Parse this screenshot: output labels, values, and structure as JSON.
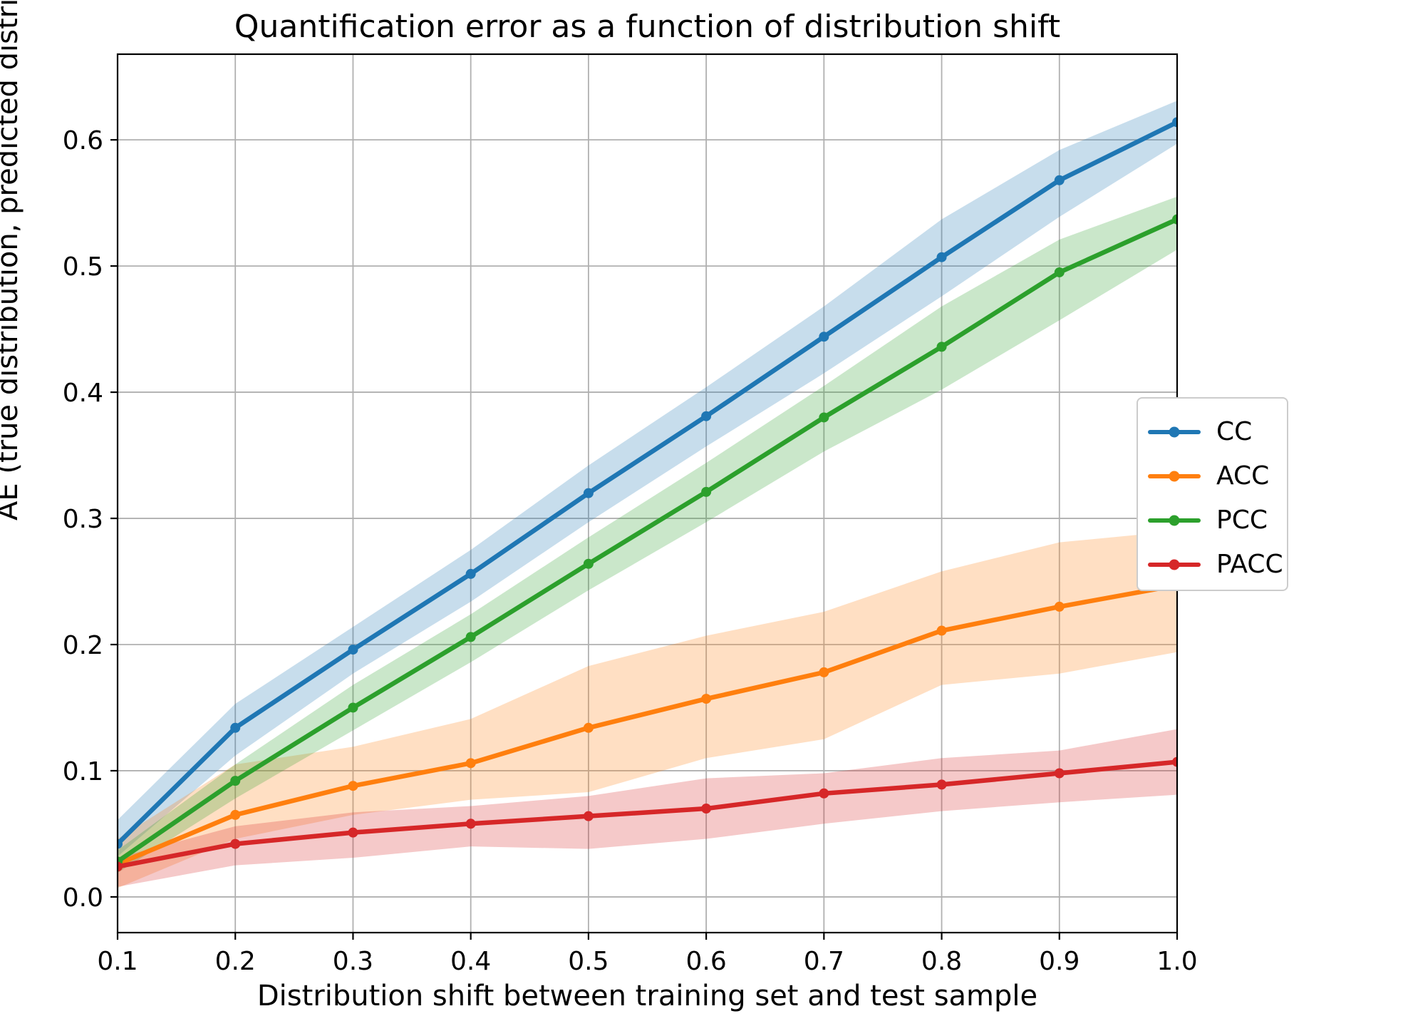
{
  "figure": {
    "title": "Quantification error as a function of distribution shift",
    "xlabel": "Distribution shift between training set and test sample",
    "ylabel": "AE (true distribution, predicted distribution)",
    "background_color": "#ffffff",
    "grid_color": "#b0b0b0",
    "spine_color": "#000000",
    "text_color": "#000000"
  },
  "chart_data": {
    "type": "line",
    "title": "Quantification error as a function of distribution shift",
    "xlabel": "Distribution shift between training set and test sample",
    "ylabel": "AE (true distribution, predicted distribution)",
    "grid": true,
    "legend_position": "right of axes, outside",
    "x": [
      0.1,
      0.2,
      0.3,
      0.4,
      0.5,
      0.6,
      0.7,
      0.8,
      0.9,
      1.0
    ],
    "x_tick_labels": [
      "0.1",
      "0.2",
      "0.3",
      "0.4",
      "0.5",
      "0.6",
      "0.7",
      "0.8",
      "0.9",
      "1.0"
    ],
    "y_ticks": [
      0.0,
      0.1,
      0.2,
      0.3,
      0.4,
      0.5,
      0.6
    ],
    "y_tick_labels": [
      "0.0",
      "0.1",
      "0.2",
      "0.3",
      "0.4",
      "0.5",
      "0.6"
    ],
    "xlim": [
      0.1,
      1.0
    ],
    "ylim": [
      -0.0283,
      0.6679
    ],
    "band_alpha": 0.25,
    "series": [
      {
        "name": "CC",
        "color": "#1f77b4",
        "values": [
          0.042,
          0.134,
          0.196,
          0.256,
          0.32,
          0.381,
          0.444,
          0.507,
          0.568,
          0.614
        ],
        "band_lower": [
          0.032,
          0.112,
          0.177,
          0.234,
          0.297,
          0.357,
          0.415,
          0.476,
          0.539,
          0.597
        ],
        "band_upper": [
          0.061,
          0.153,
          0.214,
          0.275,
          0.342,
          0.404,
          0.468,
          0.537,
          0.592,
          0.631
        ]
      },
      {
        "name": "ACC",
        "color": "#ff7f0e",
        "values": [
          0.026,
          0.065,
          0.088,
          0.106,
          0.134,
          0.157,
          0.178,
          0.211,
          0.23,
          0.247
        ],
        "band_lower": [
          0.007,
          0.046,
          0.065,
          0.077,
          0.083,
          0.11,
          0.125,
          0.168,
          0.177,
          0.194
        ],
        "band_upper": [
          0.046,
          0.105,
          0.119,
          0.141,
          0.183,
          0.207,
          0.226,
          0.258,
          0.281,
          0.29
        ]
      },
      {
        "name": "PCC",
        "color": "#2ca02c",
        "values": [
          0.028,
          0.092,
          0.15,
          0.206,
          0.264,
          0.321,
          0.38,
          0.436,
          0.495,
          0.537
        ],
        "band_lower": [
          0.019,
          0.078,
          0.132,
          0.186,
          0.243,
          0.297,
          0.353,
          0.402,
          0.457,
          0.513
        ],
        "band_upper": [
          0.037,
          0.105,
          0.168,
          0.224,
          0.285,
          0.344,
          0.405,
          0.468,
          0.521,
          0.555
        ]
      },
      {
        "name": "PACC",
        "color": "#d62728",
        "values": [
          0.024,
          0.042,
          0.051,
          0.058,
          0.064,
          0.07,
          0.082,
          0.089,
          0.098,
          0.107
        ],
        "band_lower": [
          0.008,
          0.025,
          0.031,
          0.04,
          0.038,
          0.046,
          0.058,
          0.068,
          0.075,
          0.081
        ],
        "band_upper": [
          0.031,
          0.056,
          0.067,
          0.072,
          0.08,
          0.094,
          0.098,
          0.11,
          0.116,
          0.133
        ]
      }
    ]
  }
}
